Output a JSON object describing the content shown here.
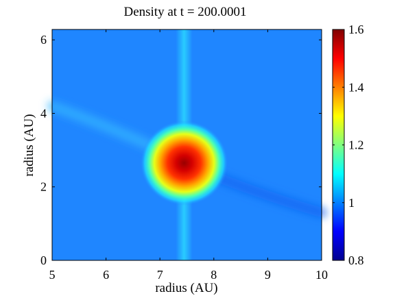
{
  "chart_data": {
    "type": "heatmap",
    "title": "Density at t = 200.0001",
    "xlabel": "radius  (AU)",
    "ylabel": "radius  (AU)",
    "xlim": [
      5,
      10
    ],
    "ylim": [
      0,
      6.283
    ],
    "xticks": [
      "5",
      "6",
      "7",
      "8",
      "9",
      "10"
    ],
    "yticks": [
      "0",
      "2",
      "4",
      "6"
    ],
    "colormap": "jet",
    "clim": [
      0.8,
      1.6
    ],
    "colorbar_ticks": [
      "0.8",
      "1",
      "1.2",
      "1.4",
      "1.6"
    ],
    "background_value": 1.0,
    "features": [
      {
        "kind": "blob",
        "label": "planet",
        "x": 7.45,
        "y": 2.65,
        "peak": 1.6
      },
      {
        "kind": "vertical_band",
        "x": 7.45,
        "peak": 1.08
      },
      {
        "kind": "spiral_arm",
        "side": "inner",
        "x_range": [
          5,
          7.0
        ],
        "y_range": [
          4.2,
          3.0
        ],
        "peak": 1.07
      },
      {
        "kind": "spiral_arm",
        "side": "outer",
        "x_range": [
          8.0,
          10
        ],
        "y_range": [
          2.3,
          1.3
        ],
        "peak": 0.97
      }
    ]
  }
}
